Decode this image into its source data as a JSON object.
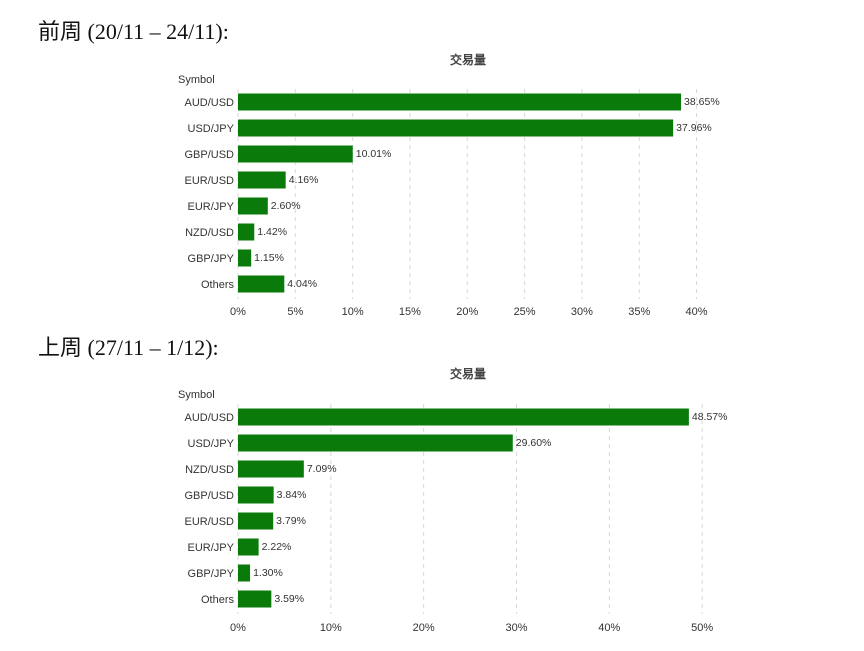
{
  "headings": [
    "前周 (20/11 – 24/11):",
    "上周 (27/11 – 1/12):"
  ],
  "colors": {
    "bar": "#0a7a0a"
  },
  "chart_data": [
    {
      "type": "bar",
      "orientation": "horizontal",
      "title": "交易量",
      "ylabel": "Symbol",
      "xlabel": "",
      "categories": [
        "AUD/USD",
        "USD/JPY",
        "GBP/USD",
        "EUR/USD",
        "EUR/JPY",
        "NZD/USD",
        "GBP/JPY",
        "Others"
      ],
      "values": [
        38.65,
        37.96,
        10.01,
        4.16,
        2.6,
        1.42,
        1.15,
        4.04
      ],
      "value_labels": [
        "38.65%",
        "37.96%",
        "10.01%",
        "4.16%",
        "2.60%",
        "1.42%",
        "1.15%",
        "4.04%"
      ],
      "xlim": [
        0,
        41
      ],
      "xticks": [
        0,
        5,
        10,
        15,
        20,
        25,
        30,
        35,
        40
      ],
      "xtick_labels": [
        "0%",
        "5%",
        "10%",
        "15%",
        "20%",
        "25%",
        "30%",
        "35%",
        "40%"
      ],
      "grid": "vertical dashed"
    },
    {
      "type": "bar",
      "orientation": "horizontal",
      "title": "交易量",
      "ylabel": "Symbol",
      "xlabel": "",
      "categories": [
        "AUD/USD",
        "USD/JPY",
        "NZD/USD",
        "GBP/USD",
        "EUR/USD",
        "EUR/JPY",
        "GBP/JPY",
        "Others"
      ],
      "values": [
        48.57,
        29.6,
        7.09,
        3.84,
        3.79,
        2.22,
        1.3,
        3.59
      ],
      "value_labels": [
        "48.57%",
        "29.60%",
        "7.09%",
        "3.84%",
        "3.79%",
        "2.22%",
        "1.30%",
        "3.59%"
      ],
      "xlim": [
        0,
        53
      ],
      "xticks": [
        0,
        10,
        20,
        30,
        40,
        50
      ],
      "xtick_labels": [
        "0%",
        "10%",
        "20%",
        "30%",
        "40%",
        "50%"
      ],
      "grid": "vertical dashed"
    }
  ]
}
